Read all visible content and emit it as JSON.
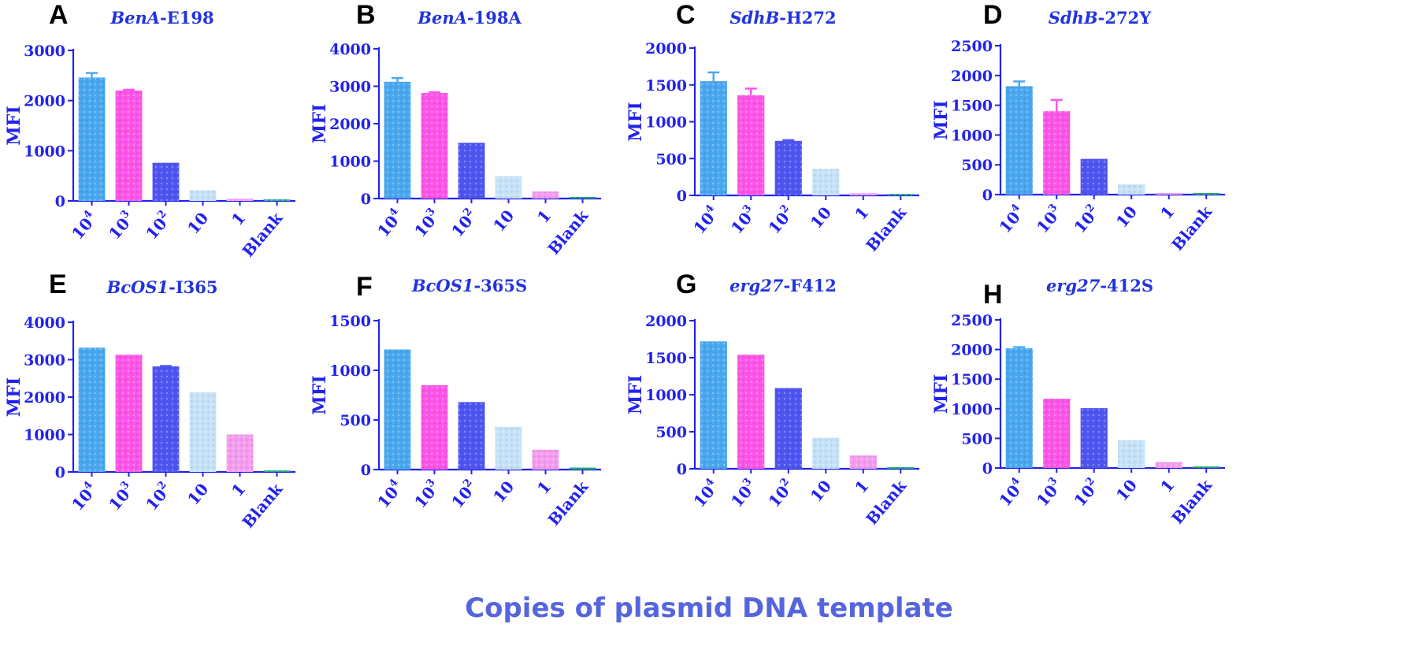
{
  "figure": {
    "shared_xlabel": "Copies of plasmid DNA template",
    "ylabel": "MFI",
    "categories": [
      "10^4",
      "10^3",
      "10^2",
      "10",
      "1",
      "Blank"
    ],
    "colors": {
      "axis": "#2222ee",
      "bars": [
        "#4aa8f0",
        "#ff55e8",
        "#4f55f2",
        "#c6e2f8",
        "#f49cf0",
        "#22aa77"
      ],
      "title": "#2233dd",
      "panel_letter": "#000000"
    }
  },
  "chart_data": [
    {
      "type": "bar",
      "panel": "A",
      "title_italic": "BenA",
      "title_rest": "-E198",
      "ylabel": "MFI",
      "ylim": [
        0,
        3000
      ],
      "yticks": [
        0,
        1000,
        2000,
        3000
      ],
      "categories": [
        "10^4",
        "10^3",
        "10^2",
        "10",
        "1",
        "Blank"
      ],
      "values": [
        2460,
        2200,
        760,
        210,
        45,
        30
      ],
      "errors": [
        90,
        15,
        0,
        0,
        0,
        0
      ]
    },
    {
      "type": "bar",
      "panel": "B",
      "title_italic": "BenA",
      "title_rest": "-198A",
      "ylabel": "MFI",
      "ylim": [
        0,
        4000
      ],
      "yticks": [
        0,
        1000,
        2000,
        3000,
        4000
      ],
      "categories": [
        "10^4",
        "10^3",
        "10^2",
        "10",
        "1",
        "Blank"
      ],
      "values": [
        3120,
        2820,
        1490,
        600,
        190,
        40
      ],
      "errors": [
        100,
        20,
        0,
        0,
        0,
        0
      ]
    },
    {
      "type": "bar",
      "panel": "C",
      "title_italic": "SdhB",
      "title_rest": "-H272",
      "ylabel": "MFI",
      "ylim": [
        0,
        2000
      ],
      "yticks": [
        0,
        500,
        1000,
        1500,
        2000
      ],
      "categories": [
        "10^4",
        "10^3",
        "10^2",
        "10",
        "1",
        "Blank"
      ],
      "values": [
        1550,
        1360,
        740,
        360,
        30,
        20
      ],
      "errors": [
        120,
        90,
        10,
        0,
        0,
        0
      ]
    },
    {
      "type": "bar",
      "panel": "D",
      "title_italic": "SdhB",
      "title_rest": "-272Y",
      "ylabel": "MFI",
      "ylim": [
        0,
        2500
      ],
      "yticks": [
        0,
        500,
        1000,
        1500,
        2000,
        2500
      ],
      "categories": [
        "10^4",
        "10^3",
        "10^2",
        "10",
        "1",
        "Blank"
      ],
      "values": [
        1820,
        1400,
        600,
        170,
        25,
        20
      ],
      "errors": [
        80,
        190,
        0,
        0,
        0,
        0
      ]
    },
    {
      "type": "bar",
      "panel": "E",
      "title_italic": "BcOS1",
      "title_rest": "-I365",
      "ylabel": "MFI",
      "ylim": [
        0,
        4000
      ],
      "yticks": [
        0,
        1000,
        2000,
        3000,
        4000
      ],
      "categories": [
        "10^4",
        "10^3",
        "10^2",
        "10",
        "1",
        "Blank"
      ],
      "values": [
        3320,
        3130,
        2820,
        2130,
        1000,
        10
      ],
      "errors": [
        0,
        0,
        10,
        0,
        0,
        0
      ]
    },
    {
      "type": "bar",
      "panel": "F",
      "title_italic": "BcOS1",
      "title_rest": "-365S",
      "ylabel": "MFI",
      "ylim": [
        0,
        1500
      ],
      "yticks": [
        0,
        500,
        1000,
        1500
      ],
      "categories": [
        "10^4",
        "10^3",
        "10^2",
        "10",
        "1",
        "Blank"
      ],
      "values": [
        1210,
        850,
        680,
        430,
        200,
        20
      ],
      "errors": [
        0,
        0,
        0,
        0,
        0,
        0
      ]
    },
    {
      "type": "bar",
      "panel": "G",
      "title_italic": "erg27",
      "title_rest": "-F412",
      "ylabel": "MFI",
      "ylim": [
        0,
        2000
      ],
      "yticks": [
        0,
        500,
        1000,
        1500,
        2000
      ],
      "categories": [
        "10^4",
        "10^3",
        "10^2",
        "10",
        "1",
        "Blank"
      ],
      "values": [
        1720,
        1540,
        1090,
        420,
        180,
        20
      ],
      "errors": [
        0,
        0,
        0,
        0,
        0,
        0
      ]
    },
    {
      "type": "bar",
      "panel": "H",
      "title_italic": "erg27",
      "title_rest": "-412S",
      "ylabel": "MFI",
      "ylim": [
        0,
        2500
      ],
      "yticks": [
        0,
        500,
        1000,
        1500,
        2000,
        2500
      ],
      "categories": [
        "10^4",
        "10^3",
        "10^2",
        "10",
        "1",
        "Blank"
      ],
      "values": [
        2020,
        1170,
        1010,
        470,
        100,
        10
      ],
      "errors": [
        20,
        0,
        0,
        0,
        0,
        0
      ]
    }
  ]
}
